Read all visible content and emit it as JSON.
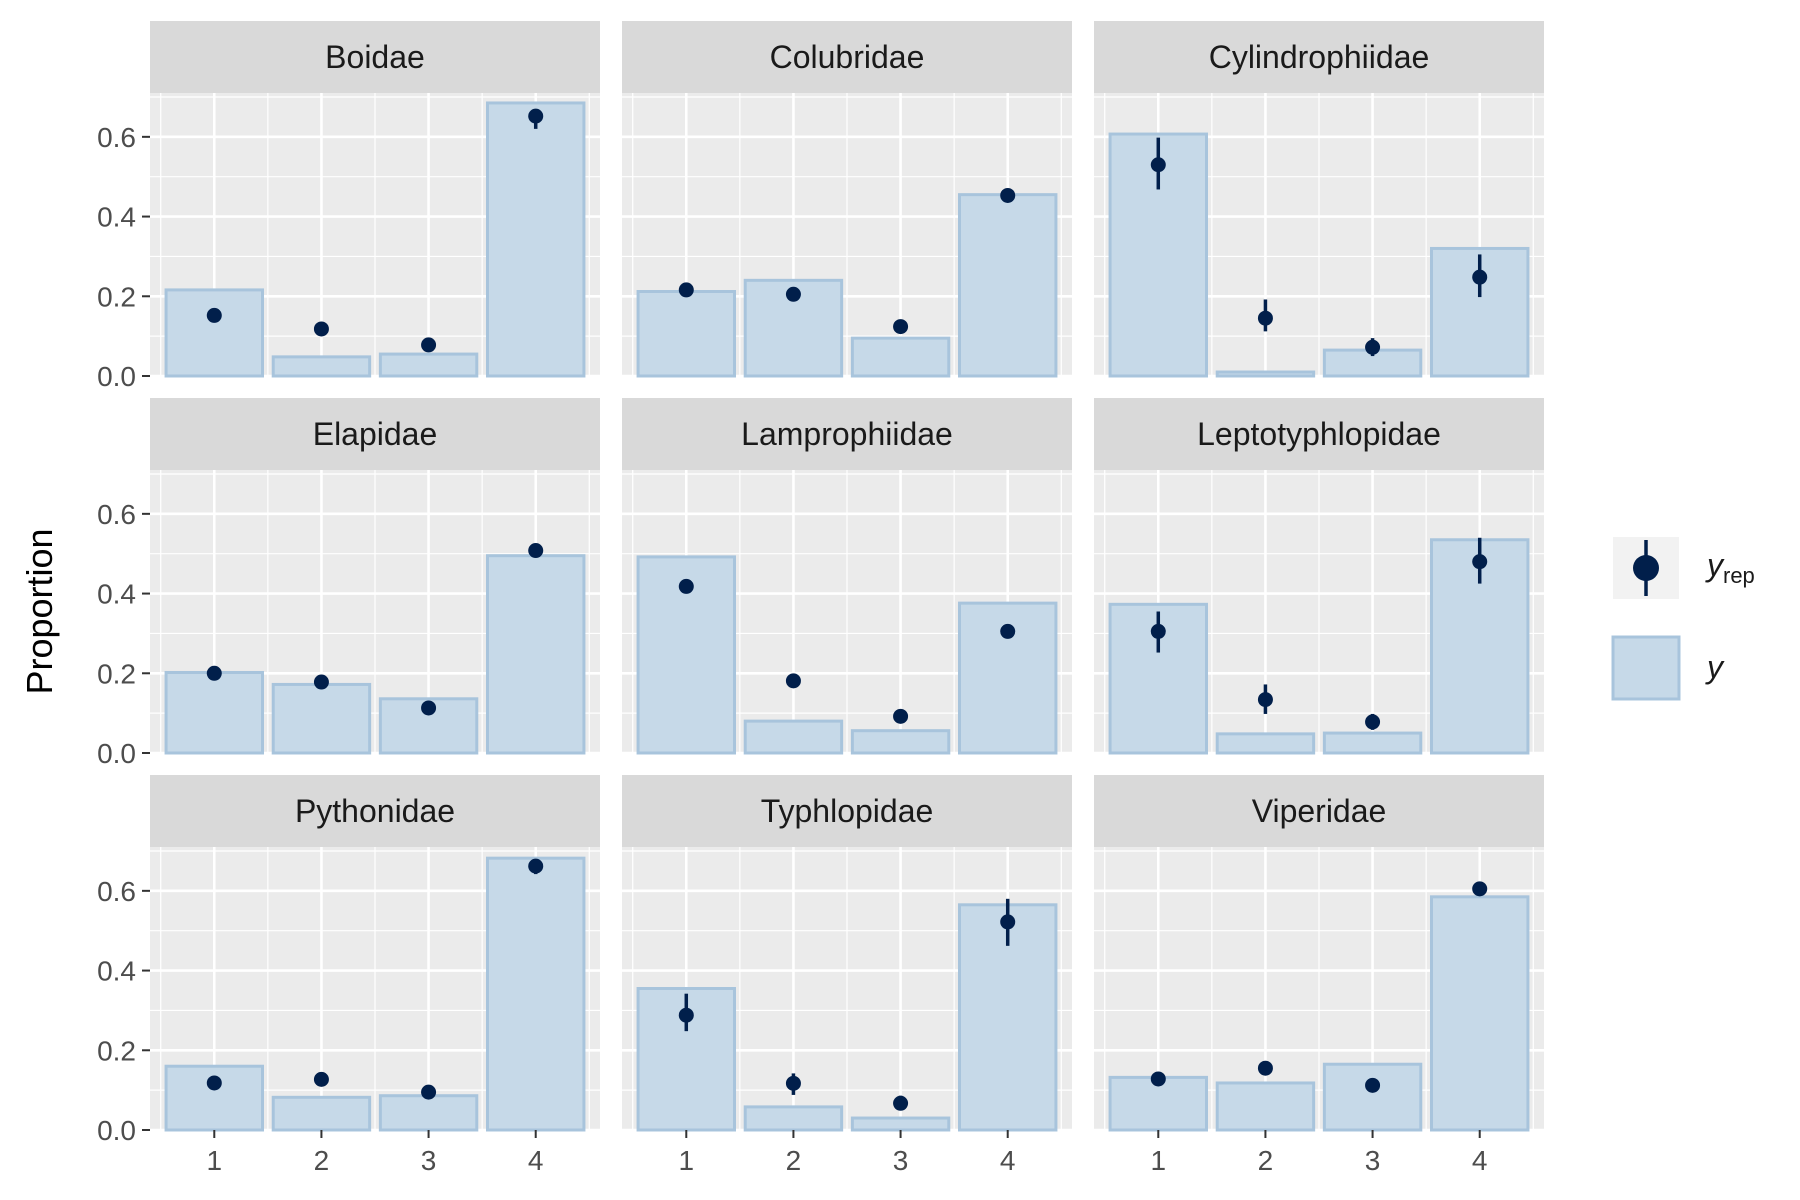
{
  "chart_data": {
    "type": "bar",
    "facet_layout": "3x3",
    "title": "",
    "xlabel": "",
    "ylabel": "Proportion",
    "categories": [
      "1",
      "2",
      "3",
      "4"
    ],
    "ylim": [
      0,
      0.71
    ],
    "yticks": [
      "0.0",
      "0.2",
      "0.4",
      "0.6"
    ],
    "grid": true,
    "legend": {
      "position": "right",
      "entries": [
        {
          "key": "yrep",
          "label_main": "y",
          "label_sub": "rep",
          "mark": "point-interval"
        },
        {
          "key": "y",
          "label_main": "y",
          "label_sub": "",
          "mark": "bar"
        }
      ]
    },
    "colors": {
      "panel_bg": "#ebebeb",
      "strip_bg": "#d9d9d9",
      "grid": "#ffffff",
      "bar_fill": "#c6d9e8",
      "bar_stroke": "#a8c4dc",
      "point": "#011f4b"
    },
    "panels": [
      {
        "name": "Boidae",
        "y": [
          0.216,
          0.048,
          0.055,
          0.685
        ],
        "yrep": [
          0.152,
          0.118,
          0.078,
          0.652
        ],
        "yrep_low": [
          0.135,
          0.108,
          0.07,
          0.62
        ],
        "yrep_high": [
          0.168,
          0.128,
          0.086,
          0.668
        ]
      },
      {
        "name": "Colubridae",
        "y": [
          0.212,
          0.24,
          0.095,
          0.455
        ],
        "yrep": [
          0.216,
          0.205,
          0.124,
          0.453
        ],
        "yrep_low": [
          0.208,
          0.196,
          0.116,
          0.444
        ],
        "yrep_high": [
          0.224,
          0.213,
          0.131,
          0.461
        ]
      },
      {
        "name": "Cylindrophiidae",
        "y": [
          0.607,
          0.01,
          0.065,
          0.32
        ],
        "yrep": [
          0.53,
          0.145,
          0.072,
          0.248
        ],
        "yrep_low": [
          0.468,
          0.112,
          0.05,
          0.198
        ],
        "yrep_high": [
          0.598,
          0.192,
          0.095,
          0.305
        ]
      },
      {
        "name": "Elapidae",
        "y": [
          0.202,
          0.172,
          0.136,
          0.495
        ],
        "yrep": [
          0.2,
          0.178,
          0.113,
          0.508
        ],
        "yrep_low": [
          0.193,
          0.17,
          0.106,
          0.5
        ],
        "yrep_high": [
          0.207,
          0.185,
          0.12,
          0.516
        ]
      },
      {
        "name": "Lamprophiidae",
        "y": [
          0.492,
          0.08,
          0.056,
          0.376
        ],
        "yrep": [
          0.418,
          0.181,
          0.092,
          0.305
        ],
        "yrep_low": [
          0.41,
          0.173,
          0.086,
          0.298
        ],
        "yrep_high": [
          0.426,
          0.189,
          0.099,
          0.312
        ]
      },
      {
        "name": "Leptotyphlopidae",
        "y": [
          0.373,
          0.048,
          0.05,
          0.535
        ],
        "yrep": [
          0.305,
          0.134,
          0.078,
          0.48
        ],
        "yrep_low": [
          0.252,
          0.098,
          0.058,
          0.425
        ],
        "yrep_high": [
          0.355,
          0.172,
          0.098,
          0.54
        ]
      },
      {
        "name": "Pythonidae",
        "y": [
          0.16,
          0.082,
          0.086,
          0.682
        ],
        "yrep": [
          0.118,
          0.127,
          0.095,
          0.662
        ],
        "yrep_low": [
          0.11,
          0.118,
          0.088,
          0.642
        ],
        "yrep_high": [
          0.126,
          0.136,
          0.102,
          0.68
        ]
      },
      {
        "name": "Typhlopidae",
        "y": [
          0.355,
          0.058,
          0.03,
          0.565
        ],
        "yrep": [
          0.288,
          0.117,
          0.067,
          0.522
        ],
        "yrep_low": [
          0.248,
          0.088,
          0.052,
          0.462
        ],
        "yrep_high": [
          0.342,
          0.142,
          0.086,
          0.58
        ]
      },
      {
        "name": "Viperidae",
        "y": [
          0.132,
          0.118,
          0.165,
          0.585
        ],
        "yrep": [
          0.128,
          0.155,
          0.112,
          0.605
        ],
        "yrep_low": [
          0.123,
          0.149,
          0.106,
          0.598
        ],
        "yrep_high": [
          0.134,
          0.161,
          0.118,
          0.612
        ]
      }
    ]
  }
}
